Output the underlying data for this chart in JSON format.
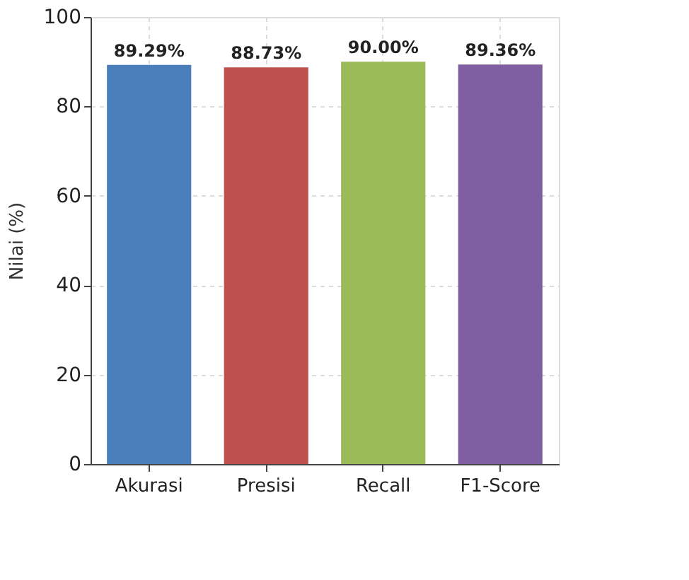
{
  "chart_data": {
    "type": "bar",
    "ylabel": "Nilai (%)",
    "categories": [
      "Akurasi",
      "Presisi",
      "Recall",
      "F1-Score"
    ],
    "values": [
      89.29,
      88.73,
      90.0,
      89.36
    ],
    "colors": [
      "#4a7ebb",
      "#c0504d",
      "#9bbb59",
      "#7f5fa1"
    ],
    "value_labels": [
      "89.29%",
      "88.73%",
      "90.00%",
      "89.36%"
    ],
    "ylim": [
      0,
      100
    ],
    "yticks": [
      0,
      20,
      40,
      60,
      80,
      100
    ],
    "grid": true
  }
}
